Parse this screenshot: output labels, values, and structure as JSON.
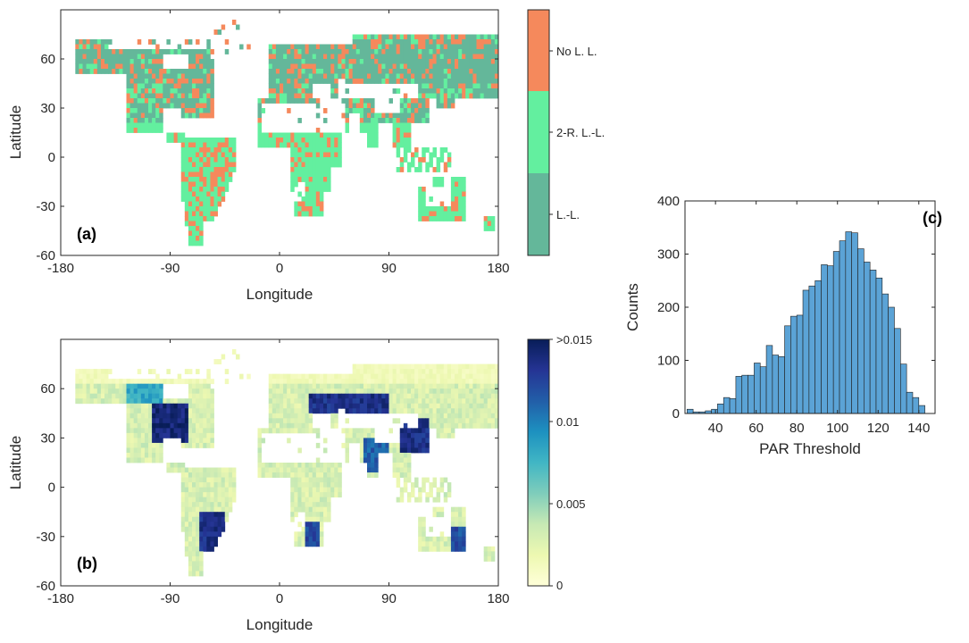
{
  "chart_data": [
    {
      "type": "heatmap",
      "panel_label": "(a)",
      "xlabel": "Longitude",
      "ylabel": "Latitude",
      "xlim": [
        -180,
        180
      ],
      "ylim": [
        -60,
        90
      ],
      "xticks": [
        "-180",
        "-90",
        "0",
        "90",
        "180"
      ],
      "yticks": [
        "60",
        "30",
        "0",
        "-30",
        "-60"
      ],
      "colorbar": {
        "type": "categorical",
        "categories": [
          {
            "label": "No L. L.",
            "color": "#f5895c"
          },
          {
            "label": "2-R. L.-L.",
            "color": "#63ef9f"
          },
          {
            "label": "L.-L.",
            "color": "#64b79a"
          }
        ]
      }
    },
    {
      "type": "heatmap",
      "panel_label": "(b)",
      "xlabel": "Longitude",
      "ylabel": "Latitude",
      "xlim": [
        -180,
        180
      ],
      "ylim": [
        -60,
        90
      ],
      "xticks": [
        "-180",
        "-90",
        "0",
        "90",
        "180"
      ],
      "yticks": [
        "60",
        "30",
        "0",
        "-30",
        "-60"
      ],
      "colorbar": {
        "type": "continuous",
        "ticks": [
          "0",
          "0.005",
          "0.01",
          ">0.015"
        ],
        "tick_values": [
          0,
          0.005,
          0.01,
          0.015
        ],
        "range": [
          0,
          0.015
        ],
        "colors": [
          "#ffffd9",
          "#edf8b1",
          "#c7e9b4",
          "#7fcdbb",
          "#41b6c4",
          "#1d91c0",
          "#225ea8",
          "#253494",
          "#081d58"
        ]
      }
    },
    {
      "type": "bar",
      "panel_label": "(c)",
      "xlabel": "PAR Threshold",
      "ylabel": "Counts",
      "xlim": [
        25,
        148
      ],
      "ylim": [
        0,
        400
      ],
      "xticks": [
        "40",
        "60",
        "80",
        "100",
        "120",
        "140"
      ],
      "xtick_values": [
        40,
        60,
        80,
        100,
        120,
        140
      ],
      "yticks": [
        "0",
        "100",
        "200",
        "300",
        "400"
      ],
      "ytick_values": [
        0,
        100,
        200,
        300,
        400
      ],
      "bar_color": "#5ba3d6",
      "bin_edges": [
        26,
        29,
        32,
        35,
        38,
        41,
        44,
        47,
        50,
        53,
        56,
        59,
        62,
        65,
        68,
        71,
        74,
        77,
        80,
        83,
        86,
        89,
        92,
        95,
        98,
        101,
        104,
        107,
        110,
        113,
        116,
        119,
        122,
        125,
        128,
        131,
        134,
        137,
        140,
        143
      ],
      "values": [
        8,
        3,
        3,
        5,
        8,
        18,
        30,
        28,
        70,
        72,
        72,
        95,
        88,
        128,
        110,
        107,
        165,
        183,
        185,
        232,
        240,
        250,
        280,
        278,
        305,
        325,
        342,
        340,
        310,
        285,
        270,
        255,
        225,
        200,
        160,
        93,
        40,
        30,
        15
      ]
    }
  ]
}
